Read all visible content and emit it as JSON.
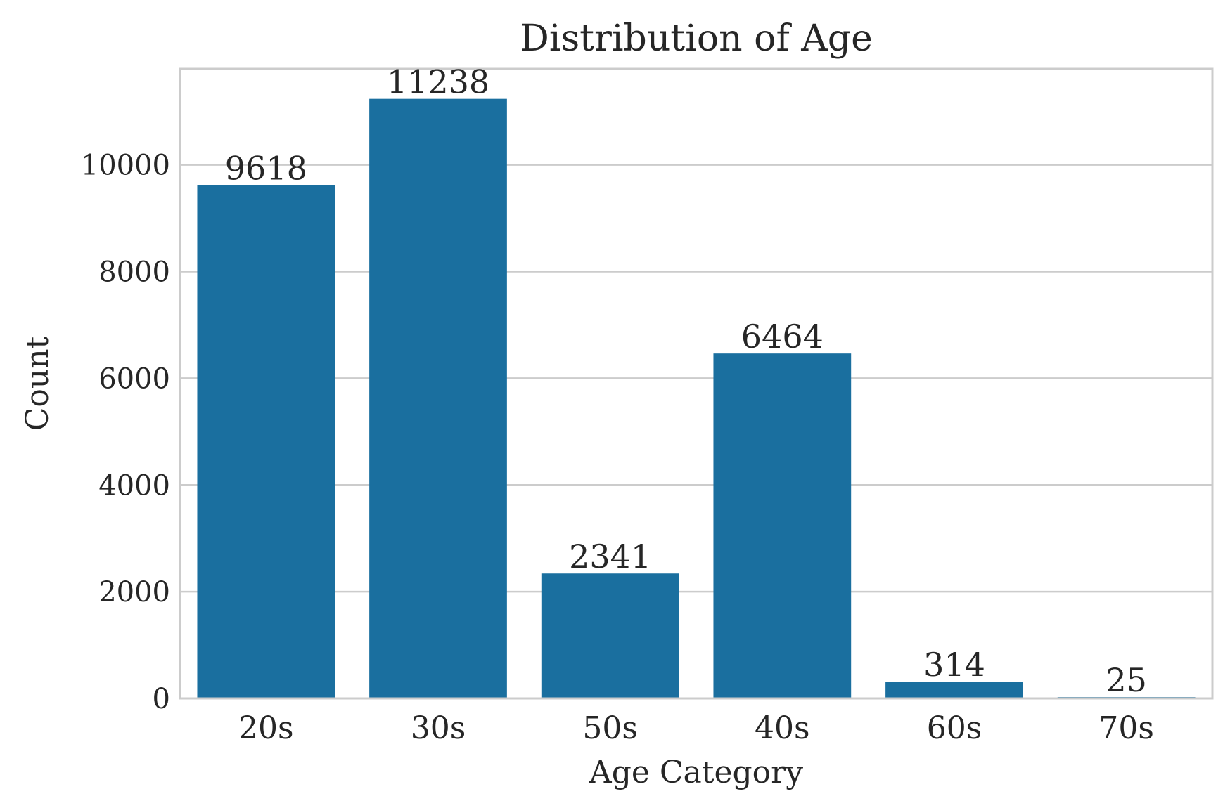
{
  "chart_data": {
    "type": "bar",
    "title": "Distribution of Age",
    "xlabel": "Age Category",
    "ylabel": "Count",
    "categories": [
      "20s",
      "30s",
      "50s",
      "40s",
      "60s",
      "70s"
    ],
    "values": [
      9618,
      11238,
      2341,
      6464,
      314,
      25
    ],
    "data_labels": [
      "9618",
      "11238",
      "2341",
      "6464",
      "314",
      "25"
    ],
    "yticks": [
      0,
      2000,
      4000,
      6000,
      8000,
      10000
    ],
    "ytick_labels": [
      "0",
      "2000",
      "4000",
      "6000",
      "8000",
      "10000"
    ],
    "ylim": [
      0,
      11800
    ],
    "grid": "horizontal",
    "legend": "none",
    "bar_color": "#1a6f9f"
  }
}
